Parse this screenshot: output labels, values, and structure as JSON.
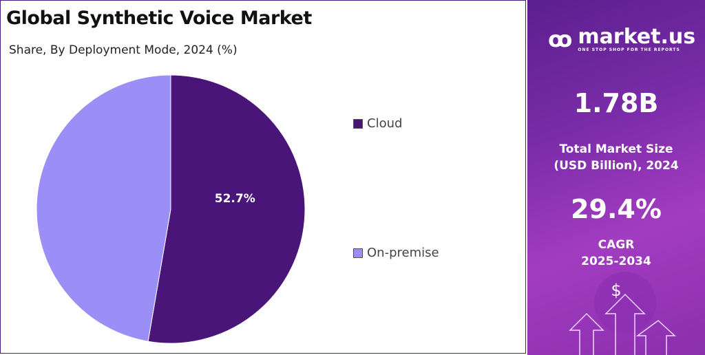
{
  "chart_data": {
    "type": "pie",
    "title": "Global Synthetic Voice Market",
    "subtitle": "Share, By Deployment Mode, 2024 (%)",
    "slices": [
      {
        "label": "Cloud",
        "value": 52.7,
        "color": "#4a1578",
        "data_label": "52.7%"
      },
      {
        "label": "On-premise",
        "value": 47.3,
        "color": "#9b8ff7",
        "data_label": ""
      }
    ],
    "legend_position": "right"
  },
  "sidebar": {
    "brand": "market.us",
    "tagline": "ONE STOP SHOP FOR THE REPORTS",
    "market_size": "1.78B",
    "market_size_label_1": "Total Market Size",
    "market_size_label_2": "(USD Billion), 2024",
    "cagr": "29.4%",
    "cagr_label_1": "CAGR",
    "cagr_label_2": "2025-2034",
    "dollar": "$"
  }
}
